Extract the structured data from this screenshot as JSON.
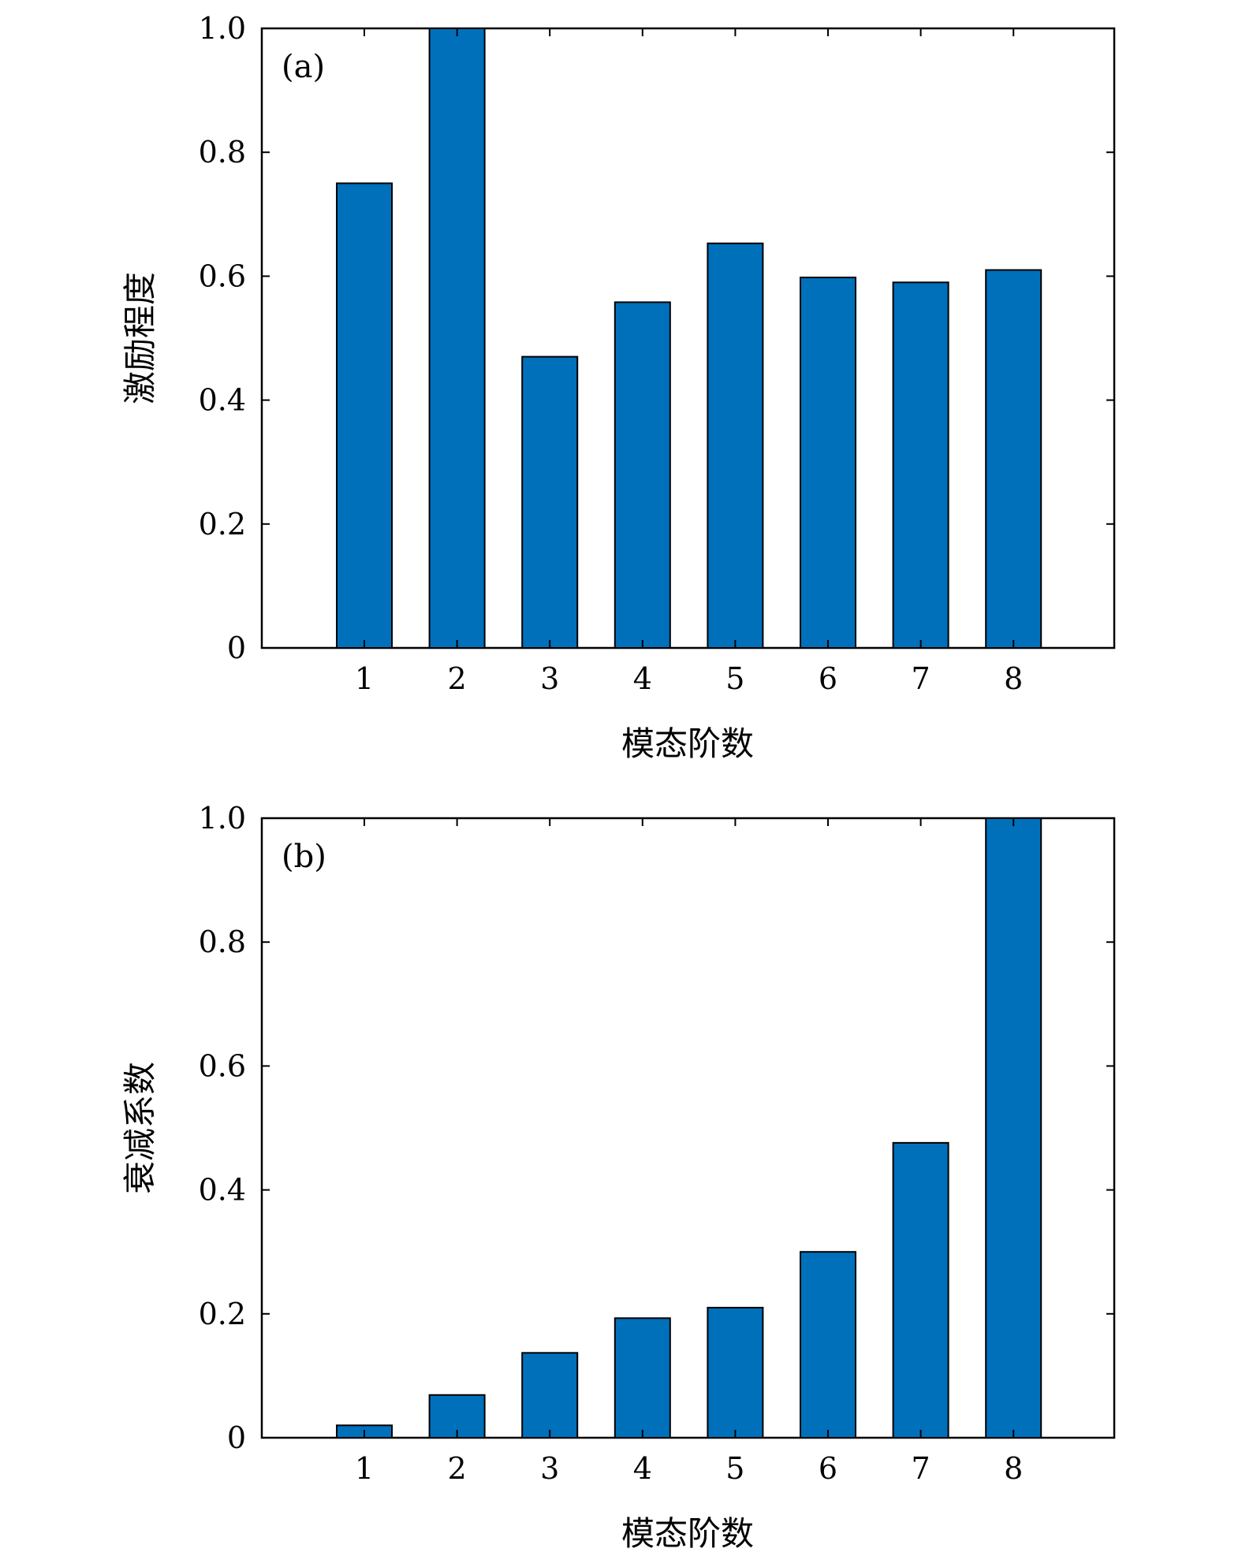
{
  "colors": {
    "bar_fill": "#0070bb",
    "bar_stroke": "#000000",
    "axis": "#000000"
  },
  "chart_data": [
    {
      "type": "bar",
      "panel_label": "(a)",
      "title": "",
      "xlabel": "模态阶数",
      "ylabel": "激励程度",
      "categories": [
        "1",
        "2",
        "3",
        "4",
        "5",
        "6",
        "7",
        "8"
      ],
      "values": [
        0.75,
        1.0,
        0.47,
        0.558,
        0.653,
        0.598,
        0.59,
        0.61
      ],
      "ylim": [
        0,
        1.0
      ],
      "yticks": [
        0,
        0.2,
        0.4,
        0.6,
        0.8,
        1.0
      ],
      "ytick_labels": [
        "0",
        "0.2",
        "0.4",
        "0.6",
        "0.8",
        "1.0"
      ],
      "grid": false,
      "legend": "none"
    },
    {
      "type": "bar",
      "panel_label": "(b)",
      "title": "",
      "xlabel": "模态阶数",
      "ylabel": "衰减系数",
      "categories": [
        "1",
        "2",
        "3",
        "4",
        "5",
        "6",
        "7",
        "8"
      ],
      "values": [
        0.02,
        0.069,
        0.137,
        0.193,
        0.21,
        0.3,
        0.476,
        1.0
      ],
      "ylim": [
        0,
        1.0
      ],
      "yticks": [
        0,
        0.2,
        0.4,
        0.6,
        0.8,
        1.0
      ],
      "ytick_labels": [
        "0",
        "0.2",
        "0.4",
        "0.6",
        "0.8",
        "1.0"
      ],
      "grid": false,
      "legend": "none"
    }
  ]
}
